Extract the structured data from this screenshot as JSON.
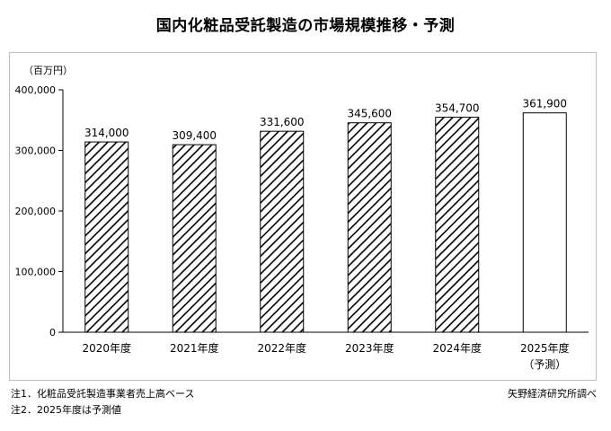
{
  "title": "国内化粧品受託製造の市場規模推移・予測",
  "chart_data": {
    "type": "bar",
    "ylabel": "（百万円）",
    "ylim": [
      0,
      400000
    ],
    "yticks": [
      0,
      100000,
      200000,
      300000,
      400000
    ],
    "ytick_labels": [
      "0",
      "100,000",
      "200,000",
      "300,000",
      "400,000"
    ],
    "categories": [
      "2020年度",
      "2021年度",
      "2022年度",
      "2023年度",
      "2024年度",
      "2025年度"
    ],
    "category_sublabels": [
      "",
      "",
      "",
      "",
      "",
      "（予測）"
    ],
    "values": [
      314000,
      309400,
      331600,
      345600,
      354700,
      361900
    ],
    "value_labels": [
      "314,000",
      "309,400",
      "331,600",
      "345,600",
      "354,700",
      "361,900"
    ],
    "styles": [
      "hatched",
      "hatched",
      "hatched",
      "hatched",
      "hatched",
      "hollow"
    ],
    "grid": false
  },
  "notes": [
    "注1．化粧品受託製造事業者売上高ベース",
    "注2．2025年度は予測値"
  ],
  "source": "矢野経済研究所調べ"
}
